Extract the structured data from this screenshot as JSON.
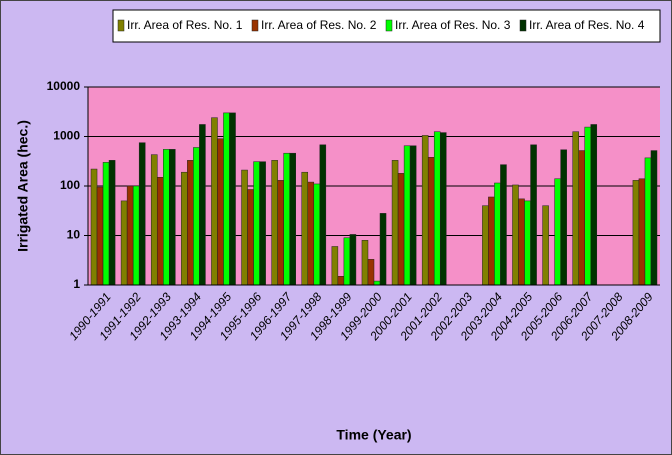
{
  "chart_data": {
    "type": "bar",
    "log_scale": true,
    "grid": true,
    "legend": "top",
    "y_label": "Irrigated Area (hec.)",
    "x_label": "Time (Year)",
    "categories": [
      "1990-1991",
      "1991-1992",
      "1992-1993",
      "1993-1994",
      "1994-1995",
      "1995-1996",
      "1996-1997",
      "1997-1998",
      "1998-1999",
      "1999-2000",
      "2000-2001",
      "2001-2002",
      "2002-2003",
      "2003-2004",
      "2004-2005",
      "2005-2006",
      "2006-2007",
      "2007-2008",
      "2008-2009"
    ],
    "series": [
      {
        "name": "Irr. Area of Res. No. 1",
        "color": "#808000",
        "values": [
          220,
          50,
          430,
          190,
          2400,
          210,
          330,
          190,
          6,
          8,
          330,
          1050,
          null,
          40,
          105,
          40,
          1250,
          null,
          130
        ]
      },
      {
        "name": "Irr. Area of Res. No. 2",
        "color": "#993300",
        "values": [
          95,
          100,
          150,
          330,
          900,
          85,
          130,
          120,
          1.5,
          3.3,
          180,
          380,
          null,
          60,
          55,
          null,
          520,
          null,
          140
        ]
      },
      {
        "name": "Irr. Area of Res. No. 3",
        "color": "#00ff00",
        "values": [
          300,
          100,
          550,
          600,
          3000,
          310,
          460,
          110,
          9,
          1.2,
          650,
          1250,
          null,
          115,
          50,
          140,
          1550,
          null,
          370
        ]
      },
      {
        "name": "Irr. Area of Res. No. 4",
        "color": "#003300",
        "values": [
          330,
          750,
          550,
          1750,
          3000,
          310,
          460,
          680,
          10.5,
          28,
          650,
          1200,
          null,
          270,
          680,
          540,
          1750,
          null,
          520
        ]
      }
    ],
    "ylim": [
      1,
      10000
    ],
    "yticks": [
      1,
      10,
      100,
      1000,
      10000
    ]
  }
}
